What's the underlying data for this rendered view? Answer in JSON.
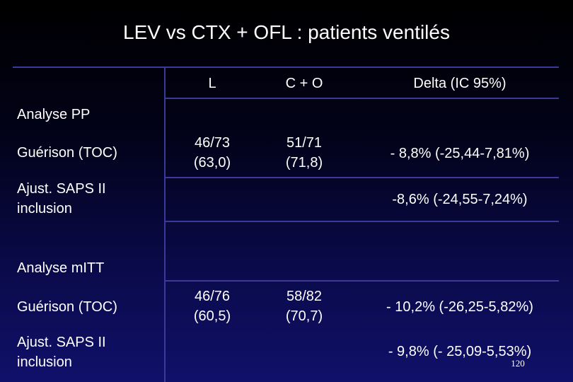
{
  "title": "LEV vs CTX + OFL : patients ventilés",
  "headers": {
    "l": "L",
    "co": "C + O",
    "delta": "Delta (IC 95%)"
  },
  "pp": {
    "section_label": "Analyse PP",
    "guerison": {
      "label": "Guérison (TOC)",
      "l_1": "46/73",
      "l_2": "(63,0)",
      "co_1": "51/71",
      "co_2": "(71,8)",
      "delta": "- 8,8% (-25,44-7,81%)"
    },
    "ajust": {
      "label_1": "Ajust. SAPS II",
      "label_2": "inclusion",
      "delta": "-8,6% (-24,55-7,24%)"
    }
  },
  "mitt": {
    "section_label": "Analyse mITT",
    "guerison": {
      "label": "Guérison (TOC)",
      "l_1": "46/76",
      "l_2": "(60,5)",
      "co_1": "58/82",
      "co_2": "(70,7)",
      "delta": "- 10,2% (-26,25-5,82%)"
    },
    "ajust": {
      "label_1": "Ajust. SAPS II",
      "label_2": "inclusion",
      "delta": "- 9,8% (- 25,09-5,53%)"
    }
  },
  "page_number": "120"
}
